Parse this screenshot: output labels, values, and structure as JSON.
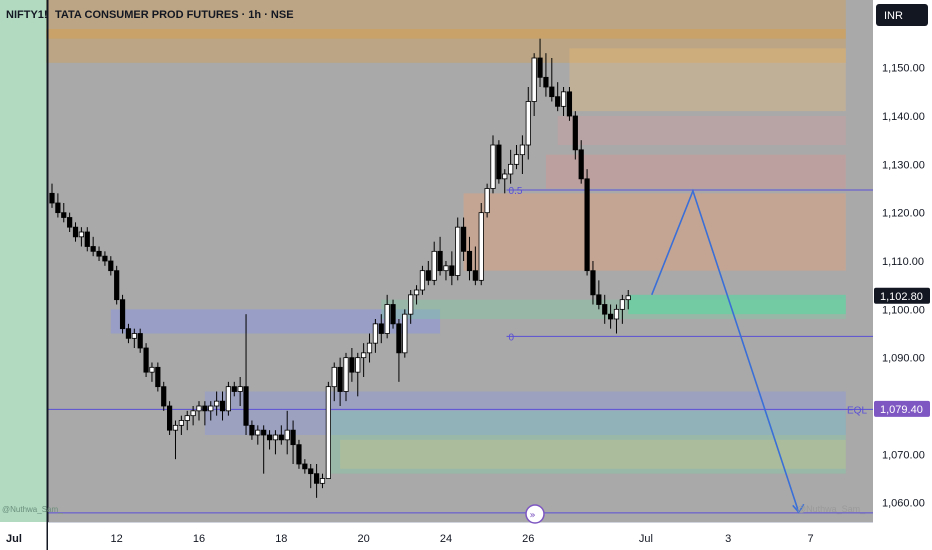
{
  "header": {
    "symbol_tab": "NIFTY1!",
    "title": "TATA CONSUMER PROD FUTURES · 1h · NSE",
    "currency_button": "INR"
  },
  "left_pane": {
    "watermark": "@Nuthwa_Sam_",
    "date_label": "Jul"
  },
  "colors": {
    "up_candle": "#ffffff",
    "down_candle": "#000000",
    "level_line": "#5b4fd6",
    "forecast_arrow": "#3a6fd8",
    "price_label_bg": "#131722",
    "eql_label_bg": "#7e57c2",
    "chart_bg": "#a9a9a9"
  },
  "chart_data": {
    "type": "candlestick",
    "ylim": [
      1056,
      1164
    ],
    "y_ticks": [
      1060,
      1070,
      1080,
      1090,
      1100,
      1110,
      1120,
      1130,
      1140,
      1150,
      1160
    ],
    "y_tick_labels": [
      "1,060.00",
      "1,070.00",
      "1,080.00",
      "1,090.00",
      "1,100.00",
      "1,110.00",
      "1,120.00",
      "1,130.00",
      "1,140.00",
      "1,150.00",
      "1,160.00"
    ],
    "x_tick_labels": [
      {
        "label": "12",
        "bar": 11
      },
      {
        "label": "16",
        "bar": 25
      },
      {
        "label": "18",
        "bar": 39
      },
      {
        "label": "20",
        "bar": 53
      },
      {
        "label": "24",
        "bar": 67
      },
      {
        "label": "26",
        "bar": 81
      },
      {
        "label": "Jul",
        "bar": 101
      },
      {
        "label": "3",
        "bar": 115
      },
      {
        "label": "7",
        "bar": 129
      }
    ],
    "last_bar": 101,
    "ohlc": [
      [
        1124,
        1126,
        1121,
        1122
      ],
      [
        1122,
        1124,
        1119,
        1120
      ],
      [
        1120,
        1122,
        1118,
        1119
      ],
      [
        1119,
        1120,
        1116,
        1117
      ],
      [
        1117,
        1118,
        1114,
        1115
      ],
      [
        1115,
        1117,
        1113,
        1116
      ],
      [
        1116,
        1117,
        1112,
        1113
      ],
      [
        1113,
        1115,
        1111,
        1112
      ],
      [
        1112,
        1113,
        1110,
        1111
      ],
      [
        1111,
        1112,
        1109,
        1110
      ],
      [
        1110,
        1111,
        1107,
        1108
      ],
      [
        1108,
        1109,
        1101,
        1102
      ],
      [
        1102,
        1103,
        1095,
        1096
      ],
      [
        1096,
        1097,
        1093,
        1094
      ],
      [
        1094,
        1096,
        1092,
        1095
      ],
      [
        1095,
        1096,
        1091,
        1092
      ],
      [
        1092,
        1093,
        1086,
        1087
      ],
      [
        1087,
        1089,
        1085,
        1088
      ],
      [
        1088,
        1089,
        1083,
        1084
      ],
      [
        1084,
        1085,
        1079,
        1080
      ],
      [
        1080,
        1081,
        1074,
        1075
      ],
      [
        1075,
        1077,
        1069,
        1076
      ],
      [
        1076,
        1078,
        1074,
        1077
      ],
      [
        1077,
        1079,
        1075,
        1078
      ],
      [
        1078,
        1080,
        1076,
        1079
      ],
      [
        1079,
        1081,
        1077,
        1080
      ],
      [
        1080,
        1081,
        1076,
        1079
      ],
      [
        1079,
        1081,
        1077,
        1080
      ],
      [
        1080,
        1083,
        1078,
        1081
      ],
      [
        1081,
        1083,
        1077,
        1079
      ],
      [
        1079,
        1085,
        1078,
        1084
      ],
      [
        1084,
        1085,
        1082,
        1083
      ],
      [
        1083,
        1086,
        1080,
        1084
      ],
      [
        1084,
        1099,
        1074,
        1076
      ],
      [
        1076,
        1077,
        1073,
        1074
      ],
      [
        1074,
        1076,
        1072,
        1075
      ],
      [
        1075,
        1076,
        1066,
        1074
      ],
      [
        1074,
        1075,
        1071,
        1073
      ],
      [
        1073,
        1075,
        1070,
        1074
      ],
      [
        1074,
        1076,
        1072,
        1073
      ],
      [
        1073,
        1079,
        1070,
        1075
      ],
      [
        1075,
        1077,
        1068,
        1072
      ],
      [
        1072,
        1073,
        1067,
        1068
      ],
      [
        1068,
        1069,
        1066,
        1067
      ],
      [
        1067,
        1068,
        1063,
        1066
      ],
      [
        1066,
        1068,
        1061,
        1064
      ],
      [
        1064,
        1066,
        1063,
        1065
      ],
      [
        1065,
        1085,
        1065,
        1084
      ],
      [
        1084,
        1089,
        1081,
        1088
      ],
      [
        1088,
        1090,
        1080,
        1083
      ],
      [
        1083,
        1091,
        1081,
        1090
      ],
      [
        1090,
        1092,
        1085,
        1087
      ],
      [
        1087,
        1091,
        1082,
        1090
      ],
      [
        1090,
        1093,
        1086,
        1091
      ],
      [
        1091,
        1095,
        1089,
        1093
      ],
      [
        1093,
        1098,
        1091,
        1097
      ],
      [
        1097,
        1099,
        1093,
        1095
      ],
      [
        1095,
        1103,
        1094,
        1101
      ],
      [
        1101,
        1102,
        1096,
        1097
      ],
      [
        1097,
        1098,
        1085,
        1091
      ],
      [
        1091,
        1100,
        1090,
        1099
      ],
      [
        1099,
        1104,
        1097,
        1103
      ],
      [
        1103,
        1105,
        1101,
        1104
      ],
      [
        1104,
        1109,
        1103,
        1108
      ],
      [
        1108,
        1110,
        1105,
        1106
      ],
      [
        1106,
        1114,
        1105,
        1112
      ],
      [
        1112,
        1115,
        1107,
        1108
      ],
      [
        1108,
        1110,
        1106,
        1109
      ],
      [
        1109,
        1112,
        1105,
        1107
      ],
      [
        1107,
        1119,
        1106,
        1117
      ],
      [
        1117,
        1119,
        1110,
        1112
      ],
      [
        1112,
        1115,
        1106,
        1108
      ],
      [
        1108,
        1113,
        1105,
        1106
      ],
      [
        1106,
        1122,
        1105,
        1120
      ],
      [
        1120,
        1126,
        1119,
        1125
      ],
      [
        1125,
        1136,
        1124,
        1134
      ],
      [
        1134,
        1135,
        1126,
        1127
      ],
      [
        1127,
        1129,
        1124,
        1128
      ],
      [
        1128,
        1133,
        1126,
        1130
      ],
      [
        1130,
        1134,
        1129,
        1132
      ],
      [
        1132,
        1136,
        1128,
        1134
      ],
      [
        1134,
        1146,
        1131,
        1143
      ],
      [
        1143,
        1153,
        1140,
        1152
      ],
      [
        1152,
        1156,
        1146,
        1148
      ],
      [
        1148,
        1153,
        1144,
        1146
      ],
      [
        1146,
        1152,
        1143,
        1144
      ],
      [
        1144,
        1147,
        1141,
        1142
      ],
      [
        1142,
        1146,
        1140,
        1145
      ],
      [
        1145,
        1146,
        1139,
        1140
      ],
      [
        1140,
        1141,
        1131,
        1133
      ],
      [
        1133,
        1135,
        1126,
        1127
      ],
      [
        1127,
        1129,
        1107,
        1108
      ],
      [
        1108,
        1110,
        1101,
        1103
      ],
      [
        1103,
        1106,
        1100,
        1101
      ],
      [
        1101,
        1103,
        1097,
        1099
      ],
      [
        1099,
        1101,
        1096,
        1098
      ],
      [
        1098,
        1101,
        1095,
        1100
      ],
      [
        1100,
        1103,
        1097,
        1102
      ],
      [
        1102,
        1104,
        1100,
        1102.8
      ]
    ],
    "zones": [
      {
        "y1": 1056,
        "y2": 1164,
        "b1": -99,
        "b2": -1,
        "color": "#a3d4b6",
        "opacity": 0.85
      },
      {
        "y1": 1151,
        "y2": 1164,
        "b1": -1,
        "b2": 135,
        "color": "#ff9800",
        "opacity": 0.22
      },
      {
        "y1": 1156,
        "y2": 1158,
        "b1": -1,
        "b2": 135,
        "color": "#ff9800",
        "opacity": 0.2
      },
      {
        "y1": 1141,
        "y2": 1154,
        "b1": 88,
        "b2": 135,
        "color": "#ffc36a",
        "opacity": 0.28
      },
      {
        "y1": 1134,
        "y2": 1140,
        "b1": 86,
        "b2": 135,
        "color": "#ff9090",
        "opacity": 0.18
      },
      {
        "y1": 1125,
        "y2": 1132,
        "b1": 84,
        "b2": 135,
        "color": "#ff8080",
        "opacity": 0.22
      },
      {
        "y1": 1108,
        "y2": 1124,
        "b1": 70,
        "b2": 135,
        "color": "#ff9f6a",
        "opacity": 0.32
      },
      {
        "y1": 1099,
        "y2": 1103,
        "b1": 98,
        "b2": 135,
        "color": "#36e8a0",
        "opacity": 0.45
      },
      {
        "y1": 1095,
        "y2": 1100,
        "b1": 10,
        "b2": 66,
        "color": "#7f8df5",
        "opacity": 0.38
      },
      {
        "y1": 1098,
        "y2": 1102,
        "b1": 56,
        "b2": 135,
        "color": "#6fd8a0",
        "opacity": 0.3
      },
      {
        "y1": 1074,
        "y2": 1083,
        "b1": 26,
        "b2": 135,
        "color": "#7f8df5",
        "opacity": 0.3
      },
      {
        "y1": 1066,
        "y2": 1079,
        "b1": 47,
        "b2": 135,
        "color": "#74e0a5",
        "opacity": 0.28
      },
      {
        "y1": 1067,
        "y2": 1073,
        "b1": 49,
        "b2": 135,
        "color": "#f4d36a",
        "opacity": 0.18
      }
    ],
    "levels": [
      {
        "label": "0.5",
        "y": 1124.8,
        "b1": 79,
        "b2": 135
      },
      {
        "label": "0",
        "y": 1094.5,
        "b1": 79,
        "b2": 135
      },
      {
        "label": "EQL",
        "y": 1079.4,
        "b1": -1,
        "b2": 135,
        "tag": "1,079.40"
      },
      {
        "label": "",
        "y": 1058,
        "b1": -1,
        "b2": 135
      }
    ],
    "forecast_path": [
      [
        102,
        1103
      ],
      [
        109,
        1124.5
      ],
      [
        127,
        1058
      ]
    ],
    "current_price": 1102.8,
    "current_price_label": "1,102.80",
    "watermark": "@Nuthwa_Sam_"
  }
}
